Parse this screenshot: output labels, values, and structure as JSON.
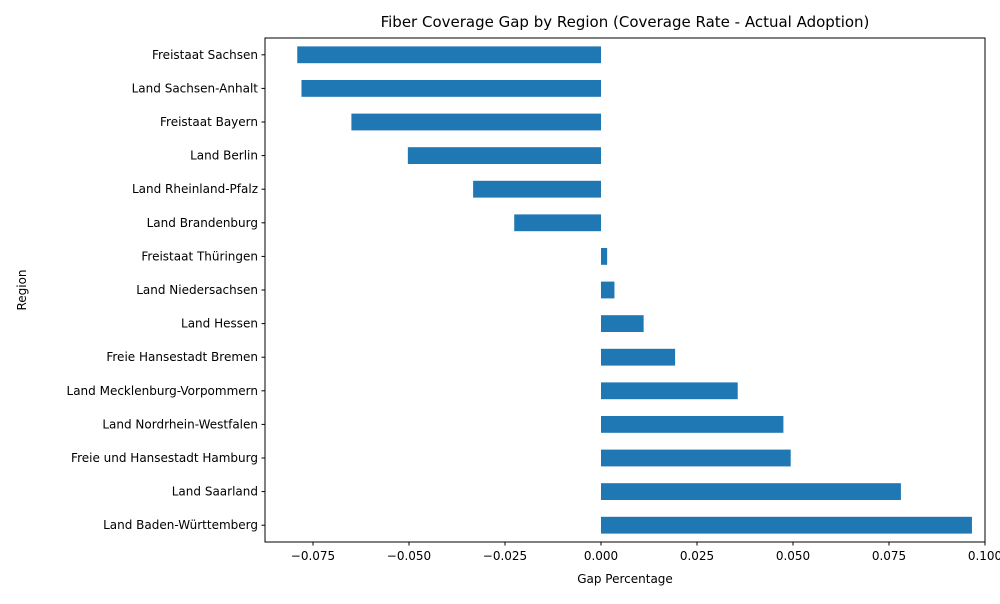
{
  "chart_data": {
    "type": "bar",
    "orientation": "horizontal",
    "title": "Fiber Coverage Gap by Region (Coverage Rate - Actual Adoption)",
    "xlabel": "Gap Percentage",
    "ylabel": "Region",
    "xlim": [
      -0.0875,
      0.1
    ],
    "grid": false,
    "bar_color": "#1f77b4",
    "x_ticks": [
      -0.075,
      -0.05,
      -0.025,
      0.0,
      0.025,
      0.05,
      0.075,
      0.1
    ],
    "x_tick_labels": [
      "−0.075",
      "−0.050",
      "−0.025",
      "0.000",
      "0.025",
      "0.050",
      "0.075",
      "0.100"
    ],
    "categories": [
      "Freistaat Sachsen",
      "Land Sachsen-Anhalt",
      "Freistaat Bayern",
      "Land Berlin",
      "Land Rheinland-Pfalz",
      "Land Brandenburg",
      "Freistaat Thüringen",
      "Land Niedersachsen",
      "Land Hessen",
      "Freie Hansestadt Bremen",
      "Land Mecklenburg-Vorpommern",
      "Land Nordrhein-Westfalen",
      "Freie und Hansestadt Hamburg",
      "Land Saarland",
      "Land Baden-Württemberg"
    ],
    "values": [
      -0.0791,
      -0.078,
      -0.065,
      -0.0503,
      -0.0333,
      -0.0226,
      0.0016,
      0.0035,
      0.0111,
      0.0193,
      0.0356,
      0.0475,
      0.0494,
      0.0781,
      0.0966
    ]
  }
}
